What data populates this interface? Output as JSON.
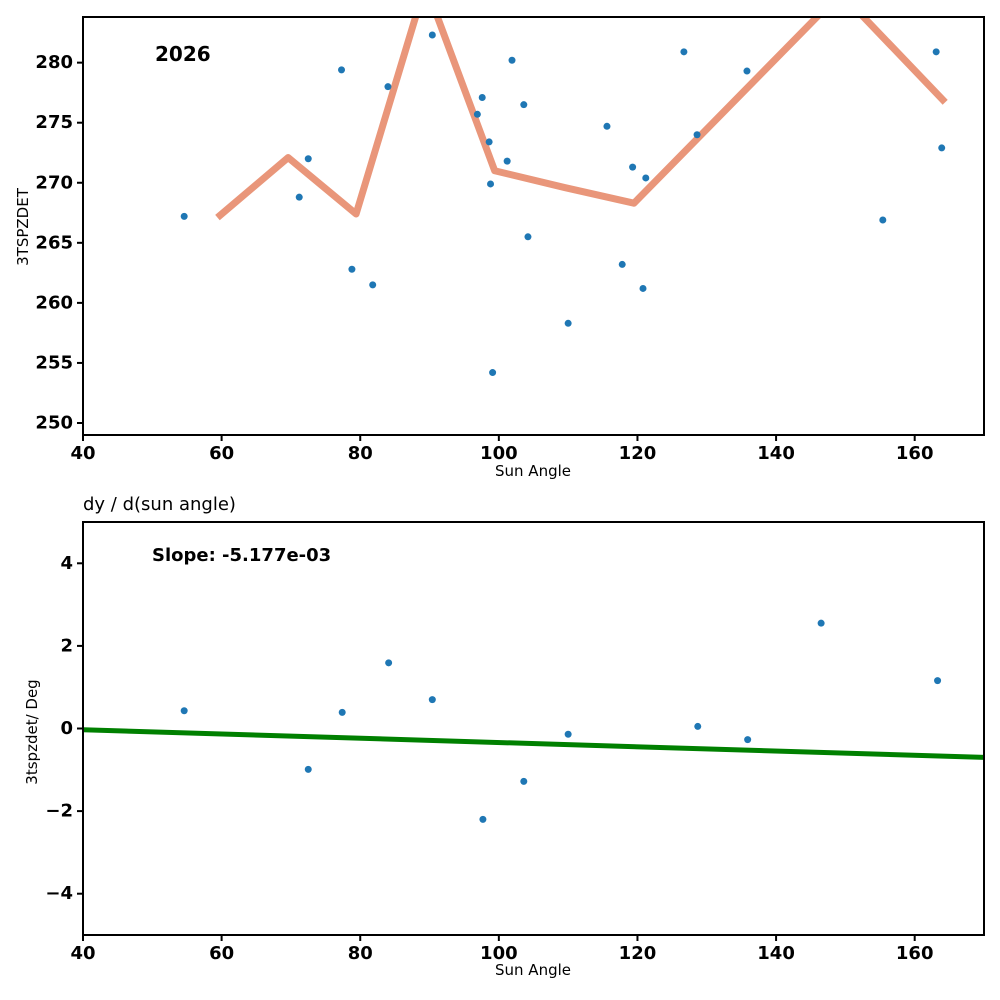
{
  "figure": {
    "background": "#ffffff",
    "spine_color": "#000000",
    "tick_label_color": "#000000"
  },
  "chart_data": [
    {
      "type": "scatter",
      "annotation": "2026",
      "xlabel": "Sun Angle",
      "ylabel": "3TSPZDET",
      "xlim": [
        40,
        170
      ],
      "ylim": [
        249,
        283.8
      ],
      "grid": false,
      "legend": "none",
      "xticks": [
        40,
        60,
        80,
        100,
        120,
        140,
        160
      ],
      "xtick_labels": [
        "40",
        "60",
        "80",
        "100",
        "120",
        "140",
        "160"
      ],
      "yticks": [
        250,
        255,
        260,
        265,
        270,
        275,
        280
      ],
      "ytick_labels": [
        "250",
        "255",
        "260",
        "265",
        "270",
        "275",
        "280"
      ],
      "marker_color": "#1f77b4",
      "points": [
        [
          54.6,
          267.2
        ],
        [
          71.2,
          268.8
        ],
        [
          72.5,
          272.0
        ],
        [
          77.3,
          279.4
        ],
        [
          78.8,
          262.8
        ],
        [
          81.8,
          261.5
        ],
        [
          84.0,
          278.0
        ],
        [
          90.4,
          282.3
        ],
        [
          96.9,
          275.7
        ],
        [
          97.6,
          277.1
        ],
        [
          98.6,
          273.4
        ],
        [
          98.8,
          269.9
        ],
        [
          99.1,
          254.2
        ],
        [
          101.2,
          271.8
        ],
        [
          101.9,
          280.2
        ],
        [
          103.6,
          276.5
        ],
        [
          104.2,
          265.5
        ],
        [
          110.0,
          258.3
        ],
        [
          115.6,
          274.7
        ],
        [
          117.8,
          263.2
        ],
        [
          119.3,
          271.3
        ],
        [
          120.8,
          261.2
        ],
        [
          121.2,
          270.4
        ],
        [
          126.7,
          280.9
        ],
        [
          128.6,
          274.0
        ],
        [
          135.8,
          279.3
        ],
        [
          155.4,
          266.9
        ],
        [
          163.1,
          280.9
        ],
        [
          163.9,
          272.9
        ]
      ],
      "lines": [
        {
          "name": "rolling-mean-line",
          "color": "#e9967a",
          "width": 7,
          "points": [
            [
              59.4,
              267.1
            ],
            [
              69.6,
              272.1
            ],
            [
              79.4,
              267.4
            ],
            [
              89.4,
              286.5
            ],
            [
              99.4,
              271.0
            ],
            [
              109.5,
              269.6
            ],
            [
              119.5,
              268.3
            ],
            [
              149.3,
              285.8
            ],
            [
              164.4,
              276.7
            ]
          ]
        }
      ]
    },
    {
      "type": "scatter",
      "title": "dy / d(sun angle)",
      "annotation": "Slope: -5.177e-03",
      "slope": -0.005177,
      "xlabel": "Sun Angle",
      "ylabel": "3tspzdet/ Deg",
      "xlim": [
        40,
        170
      ],
      "ylim": [
        -5,
        5
      ],
      "grid": false,
      "legend": "none",
      "xticks": [
        40,
        60,
        80,
        100,
        120,
        140,
        160
      ],
      "xtick_labels": [
        "40",
        "60",
        "80",
        "100",
        "120",
        "140",
        "160"
      ],
      "yticks": [
        -4,
        -2,
        0,
        2,
        4
      ],
      "ytick_labels": [
        "−4",
        "−2",
        "0",
        "2",
        "4"
      ],
      "marker_color": "#1f77b4",
      "points": [
        [
          54.6,
          0.43
        ],
        [
          72.5,
          -0.99
        ],
        [
          77.4,
          0.39
        ],
        [
          84.1,
          1.59
        ],
        [
          90.4,
          0.7
        ],
        [
          97.7,
          -2.2
        ],
        [
          103.6,
          -1.28
        ],
        [
          110.0,
          -0.14
        ],
        [
          128.7,
          0.05
        ],
        [
          135.9,
          -0.27
        ],
        [
          146.5,
          2.55
        ],
        [
          163.3,
          1.16
        ]
      ],
      "lines": [
        {
          "name": "fit-line",
          "color": "#008000",
          "width": 5,
          "points": [
            [
              40,
              -0.03
            ],
            [
              170,
              -0.7
            ]
          ]
        }
      ]
    }
  ]
}
